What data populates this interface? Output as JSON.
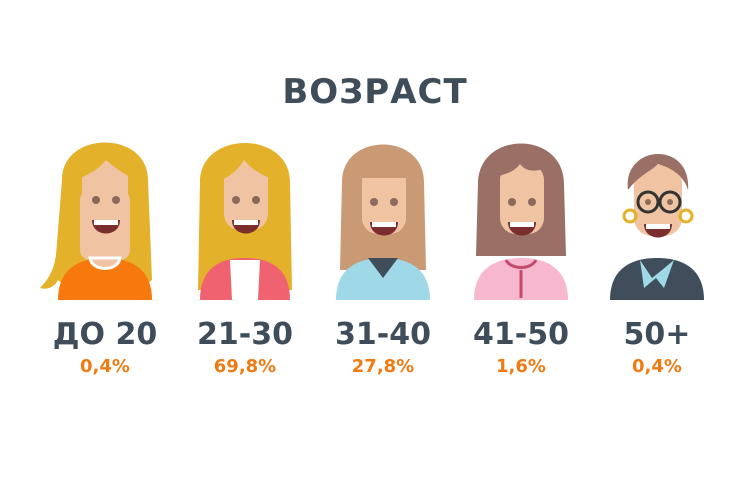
{
  "title": "ВОЗРАСТ",
  "groups": [
    {
      "label": "ДО 20",
      "value": "0,4%"
    },
    {
      "label": "21-30",
      "value": "69,8%"
    },
    {
      "label": "31-40",
      "value": "27,8%"
    },
    {
      "label": "41-50",
      "value": "1,6%"
    },
    {
      "label": "50+",
      "value": "0,4%"
    }
  ],
  "colors": {
    "heading": "#3e4d59",
    "percent": "#f07b14",
    "skin": "#f0c3a3",
    "hair_blonde": "#e3b12a",
    "hair_light_brown": "#c99a73",
    "hair_brown": "#9a6f66",
    "shirt_orange": "#f7790d",
    "shirt_red": "#f06270",
    "shirt_light_blue": "#9fd8e6",
    "shirt_pink": "#f7b8cf",
    "shirt_dark": "#3f4e5a"
  }
}
